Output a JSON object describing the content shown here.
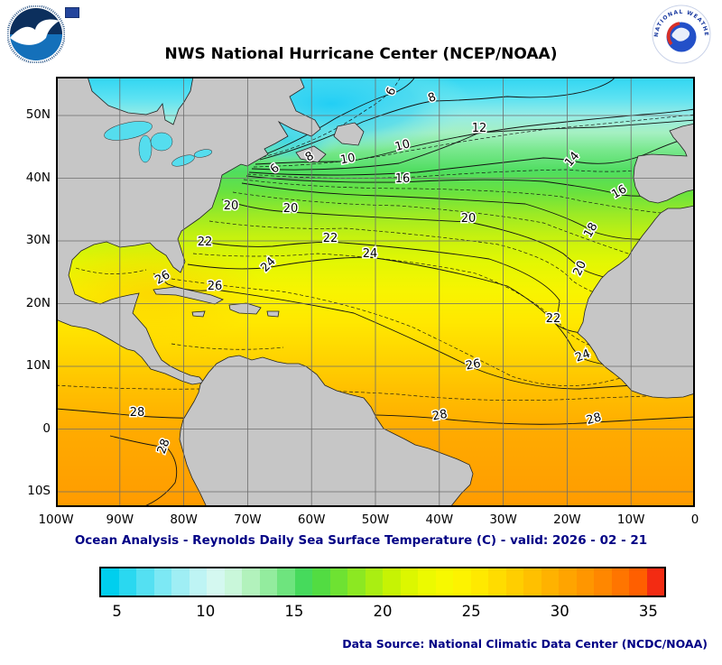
{
  "header": {
    "title": "NWS National Hurricane Center (NCEP/NOAA)",
    "noaa_logo_label": "NOAA",
    "nws_logo_label": "NATIONAL WEATHER SERVICE"
  },
  "map": {
    "lat_labels": [
      "50N",
      "40N",
      "30N",
      "20N",
      "10N",
      "0",
      "10S"
    ],
    "lon_labels": [
      "100W",
      "90W",
      "80W",
      "70W",
      "60W",
      "50W",
      "40W",
      "30W",
      "20W",
      "10W",
      "0"
    ],
    "contours": [
      "6",
      "8",
      "10",
      "12",
      "14",
      "16",
      "18",
      "20",
      "22",
      "24",
      "26",
      "28"
    ]
  },
  "caption": "Ocean Analysis - Reynolds Daily Sea Surface Temperature (C) - valid: 2026 - 02 - 21",
  "colorbar": {
    "min": 4,
    "max": 36,
    "ticks": [
      5,
      10,
      15,
      20,
      25,
      30,
      35
    ],
    "colors": [
      "#00cfee",
      "#2ad8f0",
      "#54e0f2",
      "#7ce8f4",
      "#9feef4",
      "#bef4f4",
      "#d4f8f0",
      "#c9f7da",
      "#b2f2bc",
      "#93ec9e",
      "#6ee47e",
      "#46da5c",
      "#52dc42",
      "#6ee232",
      "#8ce822",
      "#aaee12",
      "#c6f304",
      "#dcf700",
      "#ecfa00",
      "#f7f900",
      "#fdf300",
      "#ffe900",
      "#ffdc00",
      "#ffce00",
      "#ffc000",
      "#ffb200",
      "#ffa400",
      "#ff9600",
      "#ff8700",
      "#ff7500",
      "#ff5f00",
      "#f32b12"
    ]
  },
  "footer": {
    "data_source": "Data Source: National Climatic Data Center (NCDC/NOAA)"
  },
  "chart_data": {
    "type": "heatmap",
    "title": "NWS National Hurricane Center (NCEP/NOAA)",
    "subtitle": "Ocean Analysis - Reynolds Daily Sea Surface Temperature (C) - valid: 2026 - 02 - 21",
    "units": "C",
    "x_axis_ticks": [
      "100W",
      "90W",
      "80W",
      "70W",
      "60W",
      "50W",
      "40W",
      "30W",
      "20W",
      "10W",
      "0"
    ],
    "y_axis_ticks": [
      "50N",
      "40N",
      "30N",
      "20N",
      "10N",
      "0",
      "10S"
    ],
    "isotherm_values_c": [
      6,
      8,
      10,
      12,
      14,
      16,
      18,
      20,
      22,
      24,
      26,
      28
    ],
    "colorbar_range_c": [
      4,
      36
    ],
    "colorbar_tick_values_c": [
      5,
      10,
      15,
      20,
      25,
      30,
      35
    ]
  }
}
